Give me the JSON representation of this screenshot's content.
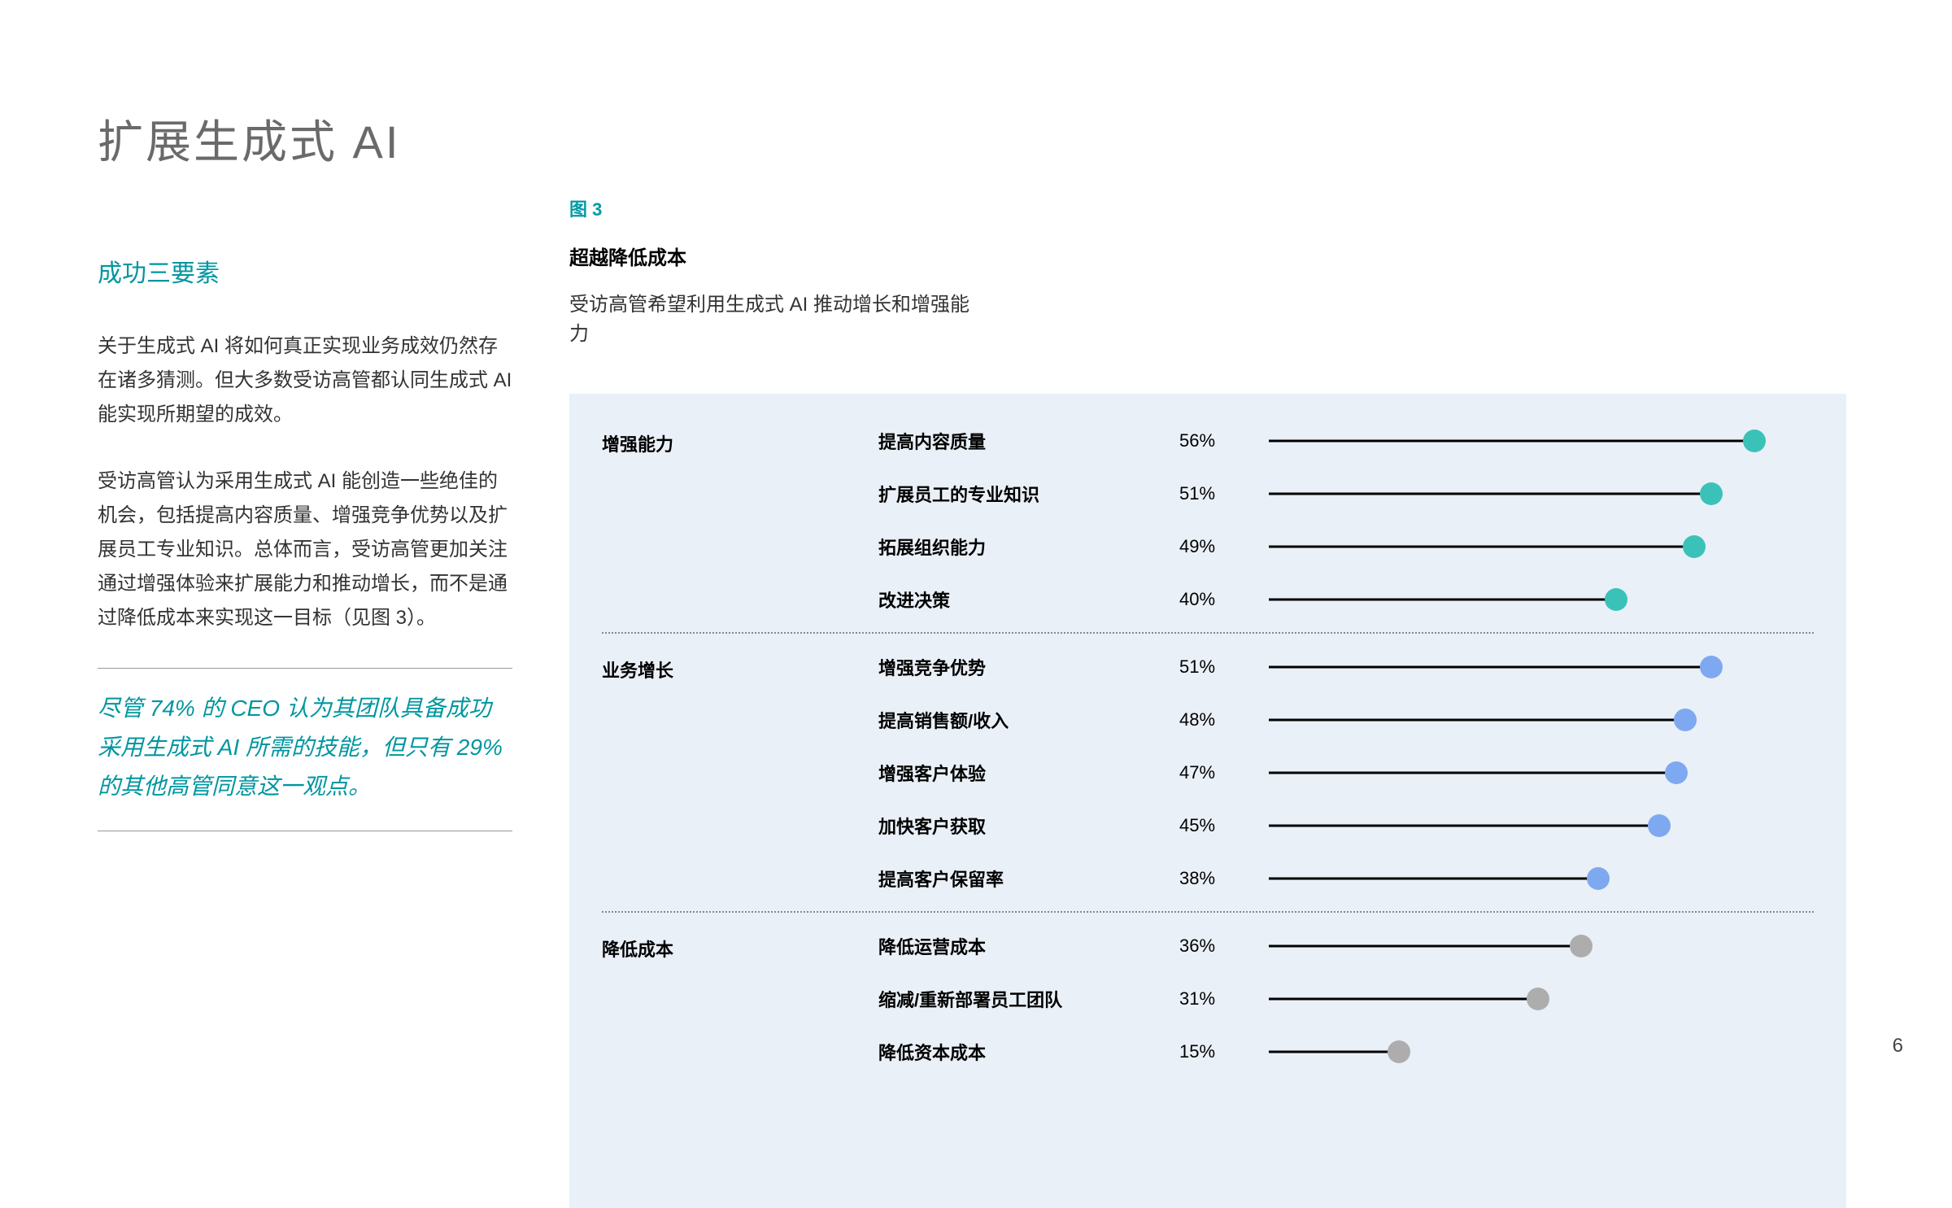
{
  "page_number": "6",
  "left": {
    "title": "扩展生成式 AI",
    "subtitle": "成功三要素",
    "para1": "关于生成式 AI 将如何真正实现业务成效仍然存在诸多猜测。但大多数受访高管都认同生成式 AI 能实现所期望的成效。",
    "para2": "受访高管认为采用生成式 AI 能创造一些绝佳的机会，包括提高内容质量、增强竞争优势以及扩展员工专业知识。总体而言，受访高管更加关注通过增强体验来扩展能力和推动增长，而不是通过降低成本来实现这一目标（见图 3）。",
    "quote": "尽管 74% 的 CEO 认为其团队具备成功采用生成式 AI 所需的技能，但只有 29% 的其他高管同意这一观点。"
  },
  "right": {
    "fig_label": "图 3",
    "fig_title": "超越降低成本",
    "fig_sub": "受访高管希望利用生成式 AI 推动增长和增强能力"
  },
  "chart": {
    "type": "dot-bar",
    "background_color": "#eaf0f7",
    "line_color": "#000000",
    "max_pct": 60,
    "bar_track_width": 640,
    "dot_size": 28,
    "groups": [
      {
        "label": "增强能力",
        "color": "#3bc2b8",
        "rows": [
          {
            "label": "提高内容质量",
            "value": 56,
            "display": "56%"
          },
          {
            "label": "扩展员工的专业知识",
            "value": 51,
            "display": "51%"
          },
          {
            "label": "拓展组织能力",
            "value": 49,
            "display": "49%"
          },
          {
            "label": "改进决策",
            "value": 40,
            "display": "40%"
          }
        ]
      },
      {
        "label": "业务增长",
        "color": "#7ea9f0",
        "rows": [
          {
            "label": "增强竞争优势",
            "value": 51,
            "display": "51%"
          },
          {
            "label": "提高销售额/收入",
            "value": 48,
            "display": "48%"
          },
          {
            "label": "增强客户体验",
            "value": 47,
            "display": "47%"
          },
          {
            "label": "加快客户获取",
            "value": 45,
            "display": "45%"
          },
          {
            "label": "提高客户保留率",
            "value": 38,
            "display": "38%"
          }
        ]
      },
      {
        "label": "降低成本",
        "color": "#adadad",
        "rows": [
          {
            "label": "降低运营成本",
            "value": 36,
            "display": "36%"
          },
          {
            "label": "缩减/重新部署员工团队",
            "value": 31,
            "display": "31%"
          },
          {
            "label": "降低资本成本",
            "value": 15,
            "display": "15%"
          }
        ]
      }
    ]
  }
}
